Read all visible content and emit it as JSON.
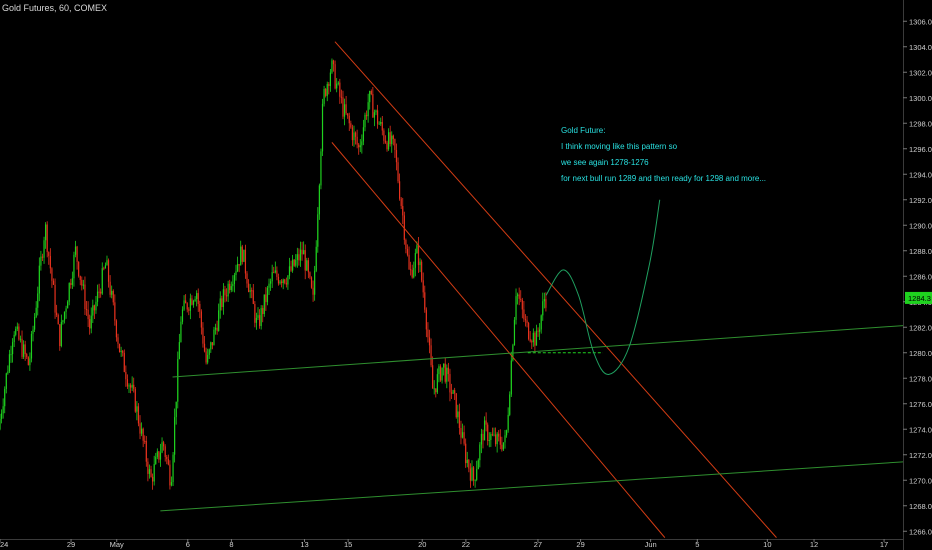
{
  "header": {
    "title": "Gold Futures, 60, COMEX"
  },
  "annotation": {
    "lines": [
      "Gold Future:",
      "I think moving like this pattern so",
      "we see again 1278-1276",
      "for next bull run 1289 and then ready for 1298 and more..."
    ]
  },
  "colors": {
    "background": "#000000",
    "up": "#1fd21f",
    "down": "#e8321e",
    "channel_red": "#d23c14",
    "channel_green": "#2f8f2f",
    "projection": "#1fa060",
    "annotation": "#29e1e1",
    "price_badge": "#1fd21f",
    "axis_text": "#cfcfcf"
  },
  "chart_data": {
    "type": "candlestick",
    "title": "Gold Futures, 60, COMEX",
    "current_price_label": "1284.3",
    "current_price": 1284.3,
    "y_ticks": [
      "1266.0",
      "1268.0",
      "1270.0",
      "1272.0",
      "1274.0",
      "1276.0",
      "1278.0",
      "1280.0",
      "1282.0",
      "1284.0",
      "1286.0",
      "1288.0",
      "1290.0",
      "1292.0",
      "1294.0",
      "1296.0",
      "1298.0",
      "1300.0",
      "1302.0",
      "1304.0",
      "1306.0"
    ],
    "ylim": [
      1265,
      1307
    ],
    "x_ticks": [
      "24",
      "29",
      "May",
      "6",
      "8",
      "13",
      "15",
      "20",
      "22",
      "27",
      "29",
      "Jun",
      "5",
      "10",
      "12",
      "17"
    ],
    "price_path": [
      {
        "t": 0.0,
        "p": 1274
      },
      {
        "t": 1.5,
        "p": 1282
      },
      {
        "t": 3.0,
        "p": 1279
      },
      {
        "t": 4.6,
        "p": 1290
      },
      {
        "t": 6.0,
        "p": 1281
      },
      {
        "t": 7.6,
        "p": 1288
      },
      {
        "t": 9.0,
        "p": 1282
      },
      {
        "t": 10.6,
        "p": 1287
      },
      {
        "t": 12.0,
        "p": 1280
      },
      {
        "t": 13.5,
        "p": 1276
      },
      {
        "t": 15.0,
        "p": 1270
      },
      {
        "t": 16.2,
        "p": 1273
      },
      {
        "t": 17.0,
        "p": 1270
      },
      {
        "t": 18.0,
        "p": 1283
      },
      {
        "t": 19.5,
        "p": 1285
      },
      {
        "t": 20.5,
        "p": 1279
      },
      {
        "t": 22.0,
        "p": 1284
      },
      {
        "t": 24.0,
        "p": 1288
      },
      {
        "t": 25.5,
        "p": 1282
      },
      {
        "t": 27.0,
        "p": 1286
      },
      {
        "t": 28.5,
        "p": 1286
      },
      {
        "t": 30.0,
        "p": 1288
      },
      {
        "t": 31.0,
        "p": 1284
      },
      {
        "t": 32.0,
        "p": 1300
      },
      {
        "t": 32.8,
        "p": 1302.5
      },
      {
        "t": 34.0,
        "p": 1299
      },
      {
        "t": 35.5,
        "p": 1296
      },
      {
        "t": 36.5,
        "p": 1300
      },
      {
        "t": 38.0,
        "p": 1297
      },
      {
        "t": 39.0,
        "p": 1296
      },
      {
        "t": 39.8,
        "p": 1291
      },
      {
        "t": 40.5,
        "p": 1286
      },
      {
        "t": 41.3,
        "p": 1288
      },
      {
        "t": 42.0,
        "p": 1284
      },
      {
        "t": 42.8,
        "p": 1277
      },
      {
        "t": 43.8,
        "p": 1279
      },
      {
        "t": 45.0,
        "p": 1276
      },
      {
        "t": 46.0,
        "p": 1272
      },
      {
        "t": 46.8,
        "p": 1270
      },
      {
        "t": 47.8,
        "p": 1274
      },
      {
        "t": 49.0,
        "p": 1273
      },
      {
        "t": 50.0,
        "p": 1273
      },
      {
        "t": 51.0,
        "p": 1285
      },
      {
        "t": 52.0,
        "p": 1282
      },
      {
        "t": 53.0,
        "p": 1281
      },
      {
        "t": 53.8,
        "p": 1284.3
      }
    ],
    "trendlines": [
      {
        "name": "channel_upper",
        "color": "red",
        "from": {
          "t": 33.0,
          "p": 1304.4
        },
        "to": {
          "t": 76.5,
          "p": 1265.5
        }
      },
      {
        "name": "channel_lower",
        "color": "red",
        "from": {
          "t": 32.7,
          "p": 1296.5
        },
        "to": {
          "t": 65.5,
          "p": 1265.5
        }
      },
      {
        "name": "support_upper",
        "color": "green",
        "from": {
          "t": 17.0,
          "p": 1278.1
        },
        "to": {
          "t": 92.0,
          "p": 1282.3
        }
      },
      {
        "name": "support_lower",
        "color": "green",
        "from": {
          "t": 15.8,
          "p": 1267.6
        },
        "to": {
          "t": 92.0,
          "p": 1271.6
        }
      }
    ],
    "dashed_level": {
      "from_t": 52.0,
      "to_t": 59.4,
      "p": 1280.0
    },
    "projection_path": [
      {
        "t": 53.8,
        "p": 1284.5
      },
      {
        "t": 55.5,
        "p": 1286.5
      },
      {
        "t": 57.0,
        "p": 1284.5
      },
      {
        "t": 58.5,
        "p": 1280.0
      },
      {
        "t": 60.0,
        "p": 1278.3
      },
      {
        "t": 62.0,
        "p": 1280.5
      },
      {
        "t": 64.0,
        "p": 1287.0
      },
      {
        "t": 65.0,
        "p": 1292.0
      }
    ],
    "grid": false,
    "legend": "none"
  }
}
